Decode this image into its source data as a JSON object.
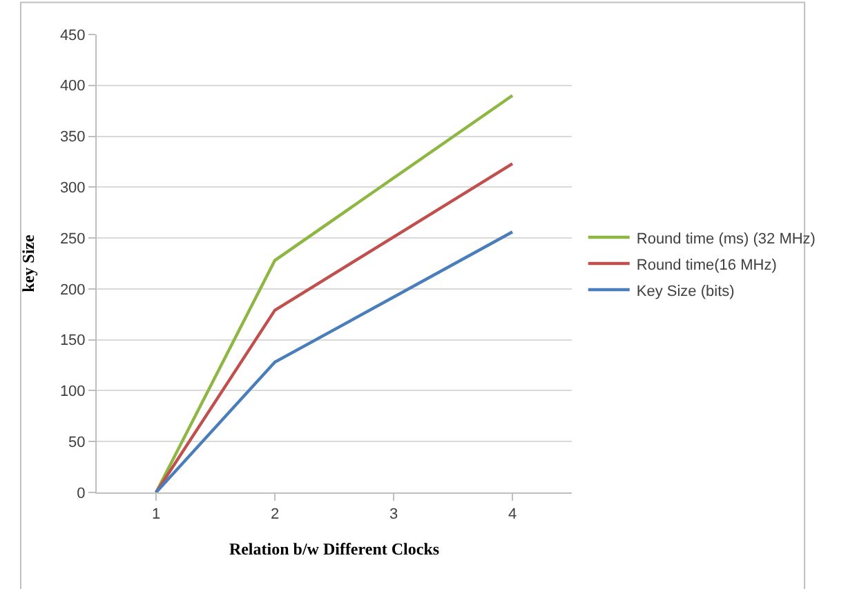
{
  "chart_data": {
    "type": "line",
    "xlabel": "Relation b/w Different Clocks",
    "ylabel": "key Size",
    "categories": [
      "1",
      "2",
      "3",
      "4"
    ],
    "series": [
      {
        "name": "Round time (ms) (32 MHz)",
        "color": "#8db642",
        "values": [
          0,
          228,
          309,
          390
        ]
      },
      {
        "name": "Round time(16 MHz)",
        "color": "#c0504d",
        "values": [
          0,
          179,
          251,
          323
        ]
      },
      {
        "name": "Key Size (bits)",
        "color": "#4a7ebb",
        "values": [
          0,
          128,
          192,
          256
        ]
      }
    ],
    "ylim": [
      0,
      450
    ],
    "yticks": [
      0,
      50,
      100,
      150,
      200,
      250,
      300,
      350,
      400,
      450
    ],
    "grid": "y",
    "legend": "right",
    "marker": "none"
  }
}
